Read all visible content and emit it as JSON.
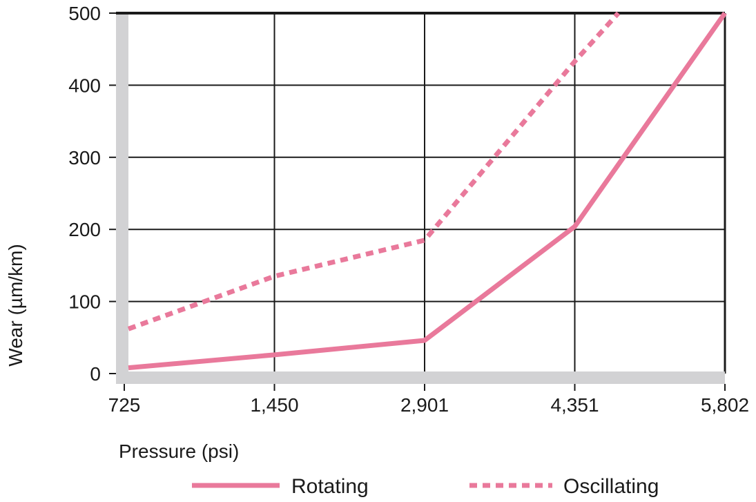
{
  "chart_data": {
    "type": "line",
    "title": "",
    "xlabel": "Pressure (psi)",
    "ylabel": "Wear (µm/km)",
    "x": [
      725,
      1450,
      2901,
      4351,
      5802
    ],
    "x_tick_labels": [
      "725",
      "1,450",
      "2,901",
      "4,351",
      "5,802"
    ],
    "x_scale": "evenly spaced ticks",
    "y_ticks": [
      0,
      100,
      200,
      300,
      400,
      500
    ],
    "y_tick_labels": [
      "0",
      "100",
      "200",
      "300",
      "400",
      "500"
    ],
    "ylim": [
      0,
      500
    ],
    "grid": true,
    "legend_placement": "bottom",
    "series": [
      {
        "name": "Rotating",
        "style": "solid",
        "color": "#e9799b",
        "values": [
          8,
          26,
          46,
          204,
          500
        ]
      },
      {
        "name": "Oscillating",
        "style": "dotted",
        "color": "#e9799b",
        "values": [
          62,
          135,
          185,
          433,
          null
        ],
        "exits_top_near_x": 4772
      }
    ]
  }
}
